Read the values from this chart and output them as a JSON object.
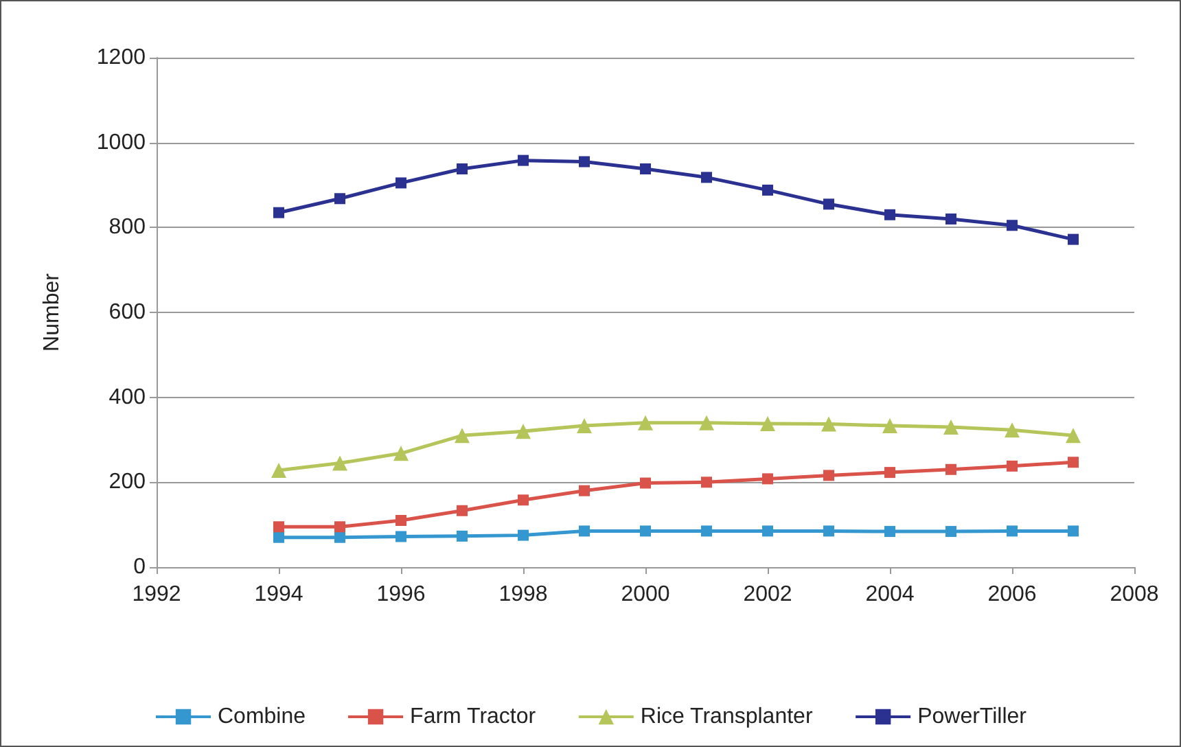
{
  "chart_data": {
    "type": "line",
    "ylabel": "Number",
    "x": [
      1994,
      1995,
      1996,
      1997,
      1998,
      1999,
      2000,
      2001,
      2002,
      2003,
      2004,
      2005,
      2006,
      2007
    ],
    "series": [
      {
        "name": "Combine",
        "color": "#3597d0",
        "marker": "square",
        "values": [
          70,
          70,
          72,
          73,
          75,
          85,
          85,
          85,
          85,
          85,
          84,
          84,
          85,
          85
        ]
      },
      {
        "name": "Farm Tractor",
        "color": "#d9534a",
        "marker": "square",
        "values": [
          95,
          95,
          110,
          133,
          158,
          180,
          198,
          200,
          208,
          216,
          223,
          230,
          238,
          247
        ]
      },
      {
        "name": "Rice Transplanter",
        "color": "#b5c55a",
        "marker": "triangle",
        "values": [
          228,
          245,
          268,
          310,
          320,
          333,
          340,
          340,
          338,
          337,
          333,
          330,
          323,
          310
        ]
      },
      {
        "name": "PowerTiller",
        "color": "#2b3190",
        "marker": "square",
        "values": [
          835,
          868,
          905,
          938,
          958,
          955,
          938,
          918,
          888,
          855,
          830,
          820,
          805,
          772
        ]
      }
    ],
    "xlim": [
      1992,
      2008
    ],
    "xticks": [
      1992,
      1994,
      1996,
      1998,
      2000,
      2002,
      2004,
      2006,
      2008
    ],
    "ylim": [
      0,
      1200
    ],
    "yticks": [
      0,
      200,
      400,
      600,
      800,
      1000,
      1200
    ],
    "grid": "y",
    "legend": "bottom",
    "line_style": "solid"
  }
}
